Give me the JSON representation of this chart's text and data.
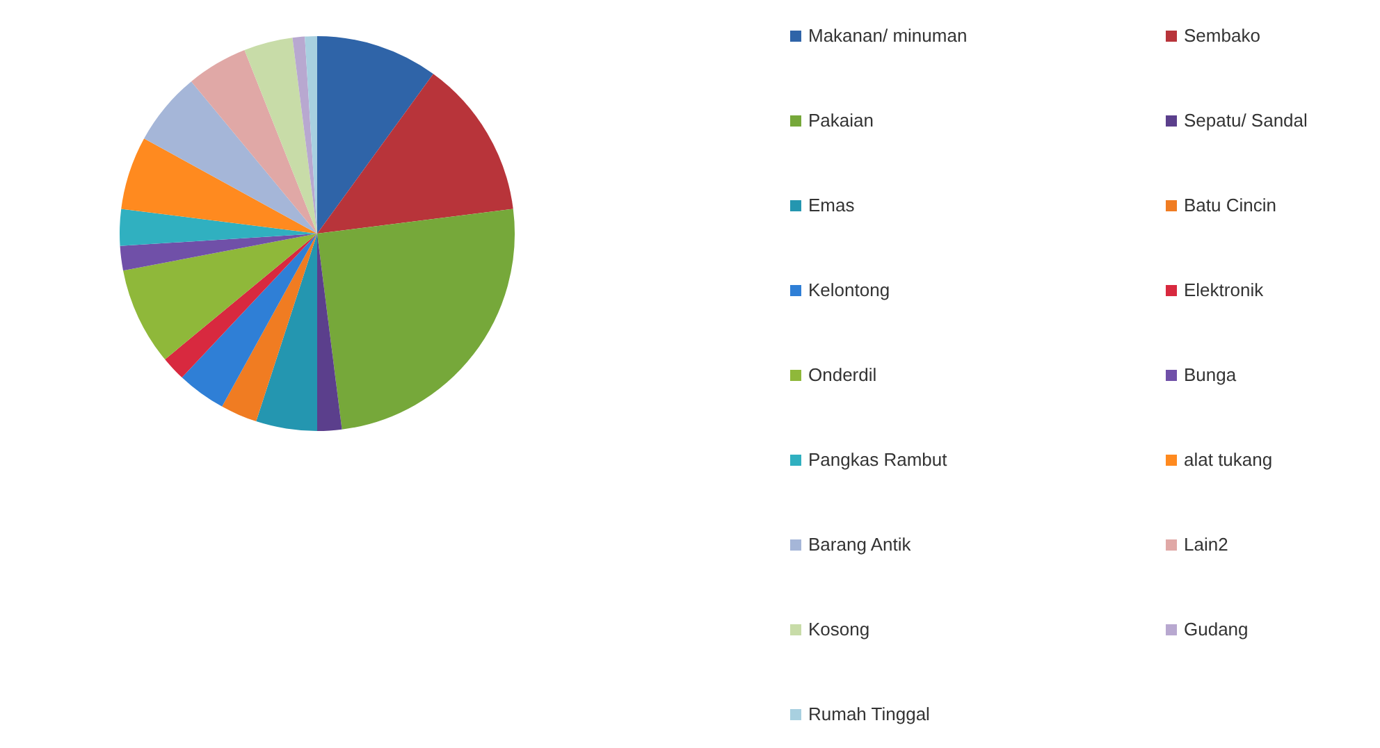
{
  "chart_data": {
    "type": "pie",
    "legend": "right",
    "categories": [
      "Makanan/ minuman",
      "Sembako",
      "Pakaian",
      "Sepatu/ Sandal",
      "Emas",
      "Batu Cincin",
      "Kelontong",
      "Elektronik",
      "Onderdil",
      "Bunga",
      "Pangkas Rambut",
      "alat tukang",
      "Barang Antik",
      "Lain2",
      "Kosong",
      "Gudang",
      "Rumah Tinggal"
    ],
    "values": [
      10,
      13,
      25,
      2,
      5,
      3,
      4,
      2,
      8,
      2,
      3,
      6,
      6,
      5,
      4,
      1,
      1
    ],
    "colors": [
      "#2f64a8",
      "#b8343a",
      "#76a83a",
      "#5b3f8c",
      "#2496b0",
      "#f07c22",
      "#2f7fd6",
      "#d8293f",
      "#8fb83a",
      "#7050a8",
      "#30b0c0",
      "#ff8a1f",
      "#a5b6d8",
      "#e0a8a6",
      "#c8dca8",
      "#b8a8d0",
      "#a8d0e0"
    ]
  }
}
